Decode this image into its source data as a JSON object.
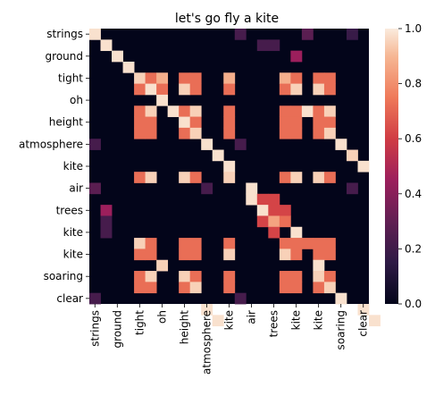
{
  "chart_data": {
    "type": "heatmap",
    "title": "let's go fly a kite",
    "labels": [
      "strings",
      "ground",
      "tight",
      "oh",
      "height",
      "atmosphere",
      "kite",
      "air",
      "trees",
      "kite",
      "kite",
      "soaring",
      "clear"
    ],
    "tokens": [
      "strings",
      "",
      "ground",
      "",
      "tight",
      "",
      "oh",
      "",
      "height",
      "",
      "atmosphere",
      "",
      "kite",
      "",
      "air",
      "",
      "trees",
      "",
      "kite",
      "",
      "kite",
      "",
      "soaring",
      "",
      "clear"
    ],
    "colorbar": {
      "min": 0.0,
      "max": 1.0,
      "ticks": [
        "0.0",
        "0.2",
        "0.4",
        "0.6",
        "0.8",
        "1.0"
      ]
    },
    "grid": false,
    "cells": [
      [
        0,
        0,
        0.98
      ],
      [
        0,
        13,
        0.22
      ],
      [
        0,
        19,
        0.28
      ],
      [
        0,
        23,
        0.18
      ],
      [
        1,
        1,
        0.98
      ],
      [
        1,
        15,
        0.22
      ],
      [
        1,
        16,
        0.22
      ],
      [
        2,
        2,
        0.98
      ],
      [
        2,
        18,
        0.45
      ],
      [
        3,
        3,
        0.98
      ],
      [
        4,
        4,
        0.95
      ],
      [
        4,
        5,
        0.72
      ],
      [
        4,
        6,
        0.88
      ],
      [
        4,
        8,
        0.72
      ],
      [
        4,
        9,
        0.72
      ],
      [
        4,
        12,
        0.88
      ],
      [
        4,
        17,
        0.88
      ],
      [
        4,
        18,
        0.72
      ],
      [
        4,
        20,
        0.72
      ],
      [
        4,
        21,
        0.72
      ],
      [
        5,
        4,
        0.72
      ],
      [
        5,
        5,
        0.98
      ],
      [
        5,
        6,
        0.72
      ],
      [
        5,
        8,
        0.95
      ],
      [
        5,
        9,
        0.72
      ],
      [
        5,
        12,
        0.72
      ],
      [
        5,
        17,
        0.72
      ],
      [
        5,
        18,
        0.95
      ],
      [
        5,
        20,
        0.95
      ],
      [
        5,
        21,
        0.72
      ],
      [
        6,
        6,
        0.98
      ],
      [
        7,
        4,
        0.72
      ],
      [
        7,
        5,
        0.95
      ],
      [
        7,
        7,
        0.98
      ],
      [
        7,
        8,
        0.72
      ],
      [
        7,
        9,
        0.95
      ],
      [
        7,
        12,
        0.72
      ],
      [
        7,
        17,
        0.72
      ],
      [
        7,
        18,
        0.72
      ],
      [
        7,
        19,
        0.98
      ],
      [
        7,
        20,
        0.72
      ],
      [
        7,
        21,
        0.95
      ],
      [
        8,
        4,
        0.72
      ],
      [
        8,
        5,
        0.72
      ],
      [
        8,
        8,
        0.98
      ],
      [
        8,
        9,
        0.72
      ],
      [
        8,
        12,
        0.72
      ],
      [
        8,
        17,
        0.72
      ],
      [
        8,
        18,
        0.72
      ],
      [
        8,
        20,
        0.72
      ],
      [
        8,
        21,
        0.72
      ],
      [
        9,
        4,
        0.72
      ],
      [
        9,
        5,
        0.72
      ],
      [
        9,
        8,
        0.72
      ],
      [
        9,
        9,
        0.95
      ],
      [
        9,
        12,
        0.72
      ],
      [
        9,
        17,
        0.72
      ],
      [
        9,
        18,
        0.72
      ],
      [
        9,
        20,
        0.72
      ],
      [
        9,
        21,
        0.95
      ],
      [
        10,
        0,
        0.22
      ],
      [
        10,
        10,
        0.98
      ],
      [
        10,
        13,
        0.22
      ],
      [
        10,
        22,
        0.98
      ],
      [
        11,
        11,
        0.98
      ],
      [
        11,
        23,
        0.95
      ],
      [
        12,
        12,
        0.98
      ],
      [
        12,
        24,
        0.98
      ],
      [
        13,
        4,
        0.72
      ],
      [
        13,
        5,
        0.95
      ],
      [
        13,
        8,
        0.95
      ],
      [
        13,
        9,
        0.72
      ],
      [
        13,
        12,
        0.95
      ],
      [
        13,
        17,
        0.72
      ],
      [
        13,
        18,
        0.95
      ],
      [
        13,
        20,
        0.95
      ],
      [
        13,
        21,
        0.72
      ],
      [
        14,
        0,
        0.28
      ],
      [
        14,
        10,
        0.22
      ],
      [
        14,
        14,
        0.98
      ],
      [
        14,
        23,
        0.22
      ],
      [
        15,
        14,
        0.98
      ],
      [
        15,
        15,
        0.62
      ],
      [
        15,
        16,
        0.62
      ],
      [
        16,
        1,
        0.45
      ],
      [
        16,
        15,
        0.98
      ],
      [
        16,
        16,
        0.62
      ],
      [
        16,
        17,
        0.62
      ],
      [
        17,
        1,
        0.22
      ],
      [
        17,
        15,
        0.62
      ],
      [
        17,
        16,
        0.85
      ],
      [
        17,
        17,
        0.72
      ],
      [
        18,
        1,
        0.22
      ],
      [
        18,
        16,
        0.62
      ],
      [
        18,
        18,
        0.98
      ],
      [
        19,
        4,
        0.95
      ],
      [
        19,
        5,
        0.72
      ],
      [
        19,
        8,
        0.72
      ],
      [
        19,
        9,
        0.72
      ],
      [
        19,
        12,
        0.72
      ],
      [
        19,
        17,
        0.72
      ],
      [
        19,
        18,
        0.72
      ],
      [
        19,
        19,
        0.72
      ],
      [
        19,
        20,
        0.72
      ],
      [
        19,
        21,
        0.72
      ],
      [
        20,
        4,
        0.72
      ],
      [
        20,
        5,
        0.72
      ],
      [
        20,
        8,
        0.72
      ],
      [
        20,
        9,
        0.72
      ],
      [
        20,
        12,
        0.95
      ],
      [
        20,
        17,
        0.95
      ],
      [
        20,
        18,
        0.72
      ],
      [
        20,
        20,
        0.72
      ],
      [
        20,
        21,
        0.72
      ],
      [
        21,
        6,
        0.95
      ],
      [
        21,
        20,
        0.98
      ],
      [
        22,
        4,
        0.72
      ],
      [
        22,
        5,
        0.95
      ],
      [
        22,
        8,
        0.95
      ],
      [
        22,
        9,
        0.72
      ],
      [
        22,
        12,
        0.72
      ],
      [
        22,
        17,
        0.72
      ],
      [
        22,
        18,
        0.72
      ],
      [
        22,
        20,
        0.95
      ],
      [
        22,
        21,
        0.72
      ],
      [
        23,
        4,
        0.72
      ],
      [
        23,
        5,
        0.72
      ],
      [
        23,
        8,
        0.72
      ],
      [
        23,
        9,
        0.95
      ],
      [
        23,
        12,
        0.72
      ],
      [
        23,
        17,
        0.72
      ],
      [
        23,
        18,
        0.72
      ],
      [
        23,
        20,
        0.72
      ],
      [
        23,
        21,
        0.95
      ],
      [
        24,
        0,
        0.22
      ],
      [
        24,
        13,
        0.22
      ],
      [
        24,
        22,
        0.98
      ],
      [
        25,
        10,
        0.98
      ],
      [
        25,
        24,
        0.98
      ],
      [
        26,
        11,
        0.98
      ],
      [
        26,
        25,
        0.98
      ]
    ]
  }
}
